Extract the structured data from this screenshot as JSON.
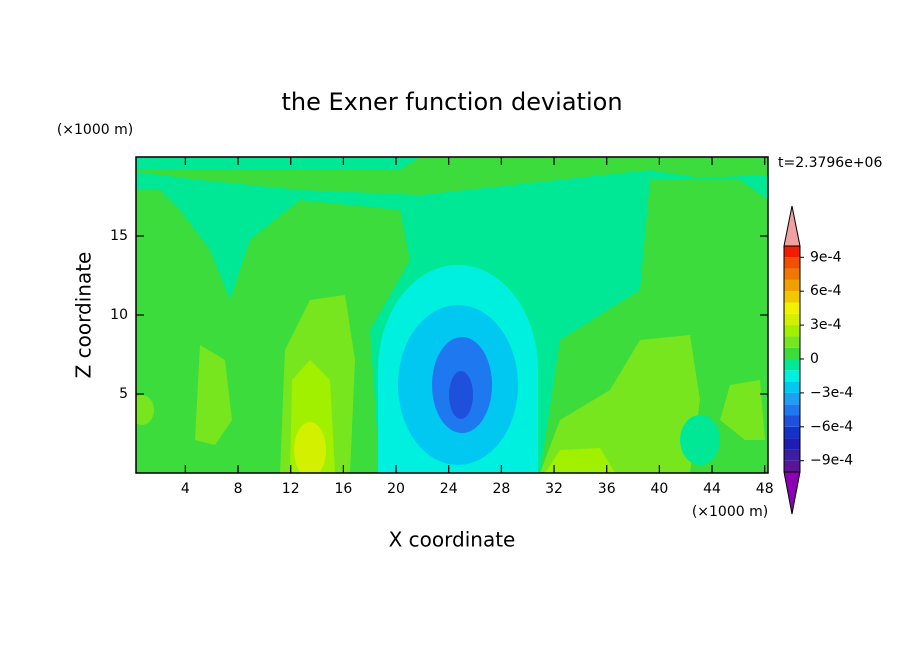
{
  "chart_data": {
    "type": "contour",
    "title": "the Exner function deviation",
    "x_label": "X coordinate",
    "y_label": "Z coordinate",
    "x_unit": "(×1000 m)",
    "y_unit": "(×1000 m)",
    "annotation": "t=2.3796e+06",
    "xlim": [
      0.25,
      48.25
    ],
    "ylim": [
      0,
      20
    ],
    "xticks": [
      4,
      8,
      12,
      16,
      20,
      24,
      28,
      32,
      36,
      40,
      44,
      48
    ],
    "yticks": [
      5,
      10,
      15
    ],
    "colorbar": {
      "levels": [
        -0.001,
        -0.0009,
        -0.0008,
        -0.0007,
        -0.0006,
        -0.0005,
        -0.0004,
        -0.0003,
        -0.0002,
        -0.0001,
        0,
        0.0001,
        0.0002,
        0.0003,
        0.0004,
        0.0005,
        0.0006,
        0.0007,
        0.0008,
        0.0009,
        0.001
      ],
      "colors": [
        "#5a1496",
        "#3c1ea0",
        "#1e1eb4",
        "#1432c8",
        "#1e50dc",
        "#1e78f0",
        "#1ea0f0",
        "#00c8f0",
        "#00f0e0",
        "#00e896",
        "#3cdc3c",
        "#78e61e",
        "#a0f000",
        "#d2f000",
        "#f0f000",
        "#f0c800",
        "#f0a000",
        "#f07800",
        "#f05000",
        "#f01e00"
      ],
      "under_color": "#8c00b4",
      "over_color": "#f0a0a0",
      "ticks": [
        {
          "value": 0.0009,
          "label": "9e-4"
        },
        {
          "value": 0.0006,
          "label": "6e-4"
        },
        {
          "value": 0.0003,
          "label": "3e-4"
        },
        0,
        {
          "value": -0.0003,
          "label": "−3e-4"
        },
        {
          "value": -0.0006,
          "label": "−6e-4"
        },
        {
          "value": -0.0009,
          "label": "−9e-4"
        }
      ]
    }
  }
}
